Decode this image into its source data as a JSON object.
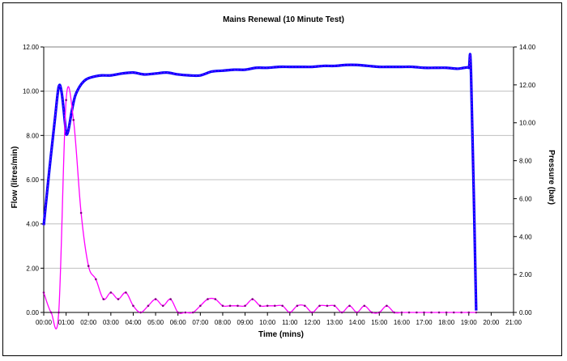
{
  "chart_data": {
    "type": "line",
    "title": "Mains Renewal (10 Minute Test)",
    "xlabel": "Time (mins)",
    "ylabel_left": "Flow (litres/min)",
    "ylabel_right": "Pressure (bar)",
    "x_ticks": [
      "00:00",
      "01:00",
      "02:00",
      "03:00",
      "04:00",
      "05:00",
      "06:00",
      "07:00",
      "08:00",
      "09:00",
      "10:00",
      "11:00",
      "12:00",
      "13:00",
      "14:00",
      "15:00",
      "16:00",
      "17:00",
      "18:00",
      "19:00",
      "20:00",
      "21:00"
    ],
    "xlim_minutes": [
      0,
      21
    ],
    "ylim_left": [
      0,
      12
    ],
    "y_ticks_left": [
      "0.00",
      "2.00",
      "4.00",
      "6.00",
      "8.00",
      "10.00",
      "12.00"
    ],
    "ylim_right": [
      0,
      14
    ],
    "y_ticks_right": [
      "0.00",
      "2.00",
      "4.00",
      "6.00",
      "8.00",
      "10.00",
      "12.00",
      "14.00"
    ],
    "grid": "horizontal",
    "legend": "none",
    "colors": {
      "flow": "#ff00ff",
      "pressure": "#0000ff",
      "pressure_dash": "#ff00ff",
      "grid": "#c0c0c0",
      "axis": "#808080"
    },
    "series": [
      {
        "axis": "left",
        "marker": "dot",
        "x_minutes": [
          0,
          0.33,
          0.67,
          1.0,
          1.33,
          1.67,
          2.0,
          2.33,
          2.67,
          3.0,
          3.33,
          3.67,
          4.0,
          4.33,
          4.67,
          5.0,
          5.33,
          5.67,
          6.0,
          6.33,
          6.67,
          7.0,
          7.33,
          7.67,
          8.0,
          8.33,
          8.67,
          9.0,
          9.33,
          9.67,
          10.0,
          10.33,
          10.67,
          11.0,
          11.33,
          11.67,
          12.0,
          12.33,
          12.67,
          13.0,
          13.33,
          13.67,
          14.0,
          14.33,
          14.67,
          15.0,
          15.33,
          15.67,
          16.0,
          16.33,
          16.67,
          17.0,
          17.33,
          17.67,
          18.0,
          18.33,
          18.67,
          19.0,
          19.33
        ],
        "values": [
          0.9,
          0,
          0,
          9.6,
          8.7,
          4.5,
          2.1,
          1.5,
          0.6,
          0.9,
          0.6,
          0.9,
          0.3,
          0,
          0.3,
          0.6,
          0.3,
          0.6,
          0,
          0,
          0,
          0.3,
          0.6,
          0.6,
          0.3,
          0.3,
          0.3,
          0.3,
          0.6,
          0.3,
          0.3,
          0.3,
          0.3,
          0,
          0.3,
          0.3,
          0,
          0.3,
          0.3,
          0.3,
          0,
          0.3,
          0,
          0.3,
          0,
          0,
          0.3,
          0,
          0,
          0,
          0,
          0,
          0,
          0,
          0,
          0,
          0,
          0,
          0
        ]
      },
      {
        "axis": "right",
        "marker": "none",
        "x_minutes": [
          0,
          0.25,
          0.5,
          0.67,
          0.8,
          0.95,
          1.0,
          1.1,
          1.25,
          1.4,
          1.6,
          1.8,
          2.0,
          2.3,
          2.6,
          3.0,
          3.5,
          4.0,
          4.5,
          5.0,
          5.5,
          6.0,
          6.5,
          7.0,
          7.5,
          8.0,
          8.5,
          9.0,
          9.5,
          10.0,
          10.5,
          11.0,
          11.5,
          12.0,
          12.5,
          13.0,
          13.5,
          14.0,
          14.5,
          15.0,
          15.5,
          16.0,
          16.5,
          17.0,
          17.5,
          18.0,
          18.5,
          18.8,
          19.0,
          19.1,
          19.33
        ],
        "values": [
          4.6,
          7.5,
          10.2,
          11.9,
          11.6,
          10.0,
          9.4,
          9.6,
          10.6,
          11.4,
          11.9,
          12.2,
          12.35,
          12.45,
          12.5,
          12.5,
          12.6,
          12.65,
          12.55,
          12.6,
          12.65,
          12.55,
          12.5,
          12.5,
          12.7,
          12.75,
          12.8,
          12.8,
          12.9,
          12.9,
          12.95,
          12.95,
          12.95,
          12.95,
          13.0,
          13.0,
          13.05,
          13.05,
          13.0,
          12.95,
          12.95,
          12.95,
          12.95,
          12.9,
          12.9,
          12.9,
          12.85,
          12.9,
          12.9,
          12.6,
          0.1
        ]
      }
    ]
  }
}
